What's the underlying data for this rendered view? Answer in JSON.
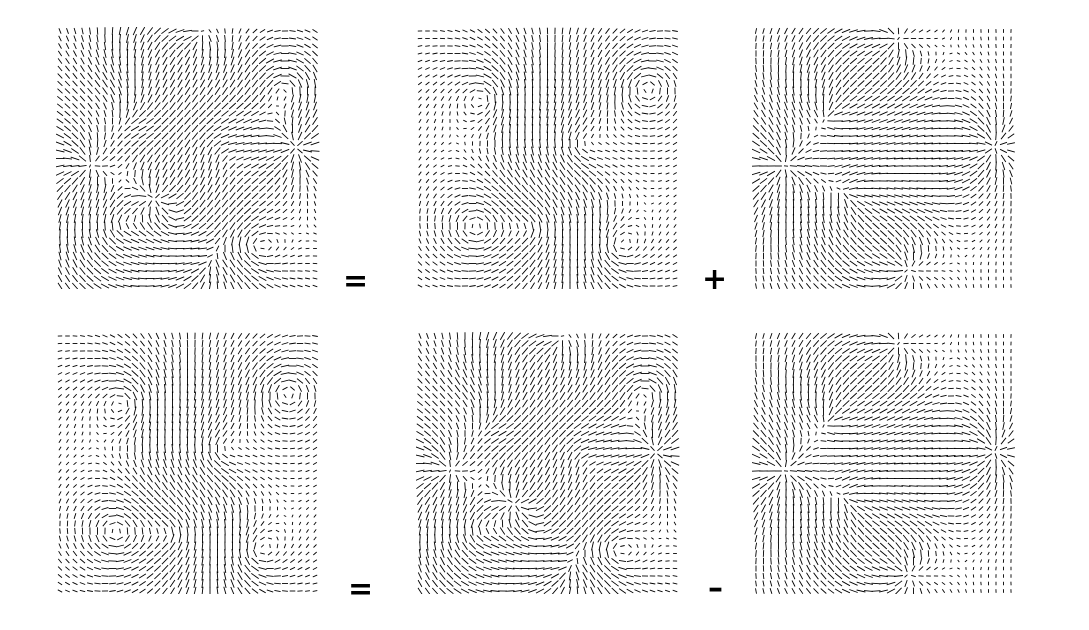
{
  "rows": [
    {
      "panels": [
        {
          "field": "total",
          "label": ""
        },
        {
          "field": "solenoidal",
          "label": ""
        },
        {
          "field": "irrotational",
          "label": ""
        }
      ],
      "operators": [
        "=",
        "+"
      ]
    },
    {
      "panels": [
        {
          "field": "solenoidal",
          "label": ""
        },
        {
          "field": "total",
          "label": ""
        },
        {
          "field": "irrotational",
          "label": ""
        }
      ],
      "operators": [
        "=",
        "–"
      ]
    }
  ],
  "colors": {
    "arrows": "#000000",
    "background": "#ffffff"
  }
}
